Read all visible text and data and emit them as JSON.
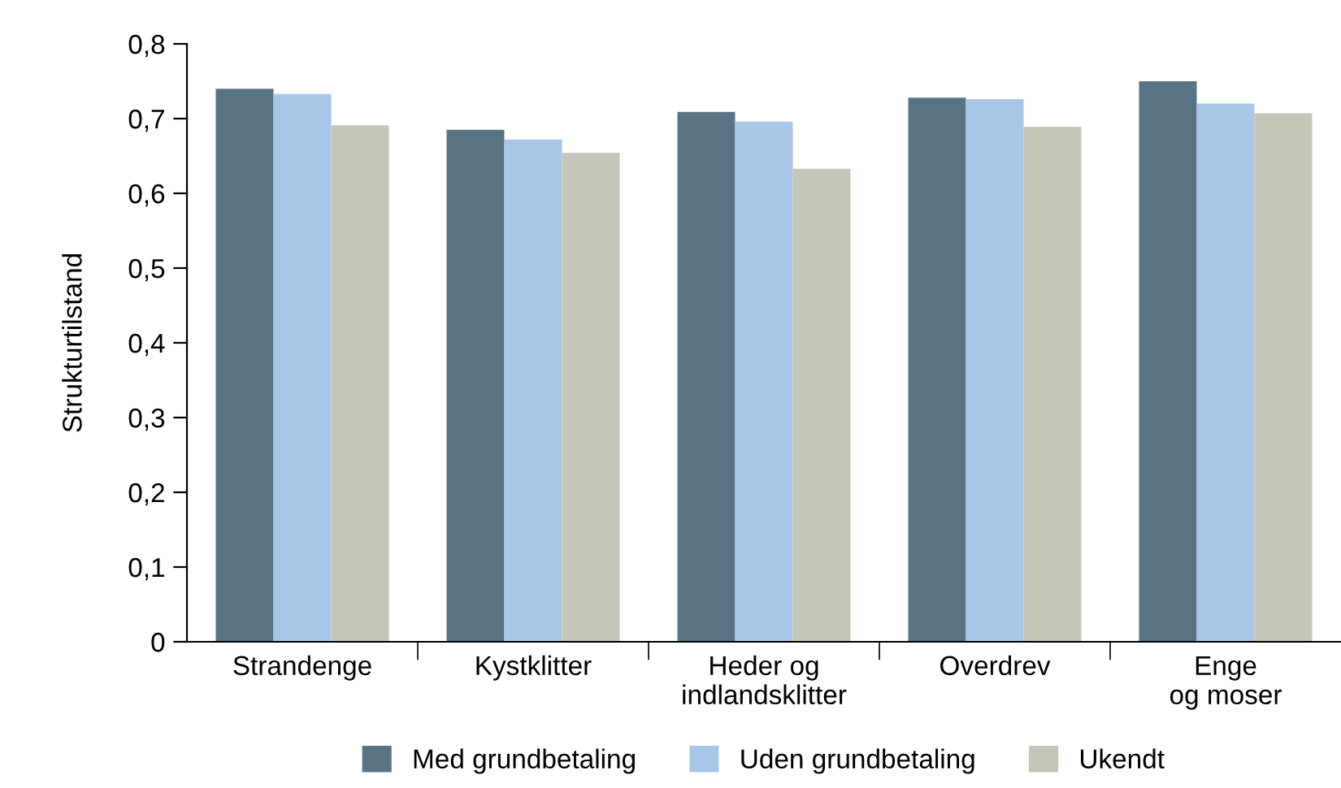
{
  "chart_data": {
    "type": "bar",
    "ylabel": "Strukturtilstand",
    "categories": [
      "Strandenge",
      "Kystklitter",
      "Heder og\nindlandsklitter",
      "Overdrev",
      "Enge\nog moser"
    ],
    "series": [
      {
        "name": "Med grundbetaling",
        "color": "#587384",
        "values": [
          0.74,
          0.685,
          0.709,
          0.728,
          0.75
        ]
      },
      {
        "name": "Uden grundbetaling",
        "color": "#a8c6e8",
        "values": [
          0.733,
          0.672,
          0.696,
          0.726,
          0.72
        ]
      },
      {
        "name": "Ukendt",
        "color": "#c5c5b9",
        "values": [
          0.691,
          0.654,
          0.633,
          0.689,
          0.707
        ]
      }
    ],
    "ylim": [
      0,
      0.8
    ],
    "yticks": [
      {
        "value": 0,
        "label": "0"
      },
      {
        "value": 0.1,
        "label": "0,1"
      },
      {
        "value": 0.2,
        "label": "0,2"
      },
      {
        "value": 0.3,
        "label": "0,3"
      },
      {
        "value": 0.4,
        "label": "0,4"
      },
      {
        "value": 0.5,
        "label": "0,5"
      },
      {
        "value": 0.6,
        "label": "0,6"
      },
      {
        "value": 0.7,
        "label": "0,7"
      },
      {
        "value": 0.8,
        "label": "0,8"
      }
    ],
    "grid": false,
    "legend": "bottom"
  }
}
